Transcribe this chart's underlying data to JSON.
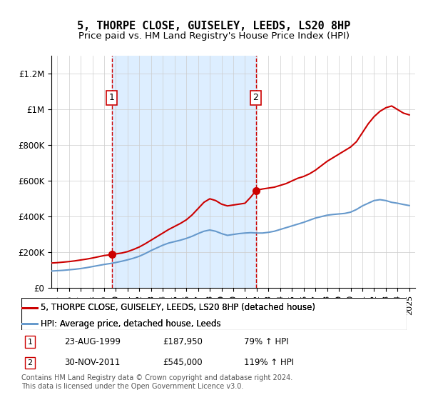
{
  "title": "5, THORPE CLOSE, GUISELEY, LEEDS, LS20 8HP",
  "subtitle": "Price paid vs. HM Land Registry's House Price Index (HPI)",
  "title_fontsize": 11,
  "subtitle_fontsize": 9.5,
  "legend_line1": "5, THORPE CLOSE, GUISELEY, LEEDS, LS20 8HP (detached house)",
  "legend_line2": "HPI: Average price, detached house, Leeds",
  "footer": "Contains HM Land Registry data © Crown copyright and database right 2024.\nThis data is licensed under the Open Government Licence v3.0.",
  "marker1_date_label": "23-AUG-1999",
  "marker1_price_label": "£187,950",
  "marker1_hpi_label": "79% ↑ HPI",
  "marker1_x": 1999.645,
  "marker1_y": 187950,
  "marker2_date_label": "30-NOV-2011",
  "marker2_price_label": "£545,000",
  "marker2_hpi_label": "119% ↑ HPI",
  "marker2_x": 2011.917,
  "marker2_y": 545000,
  "shade_x1": 1999.645,
  "shade_x2": 2011.917,
  "property_color": "#cc0000",
  "hpi_color": "#6699cc",
  "shade_color": "#ddeeff",
  "marker_box_color": "#cc0000",
  "ylim": [
    0,
    1300000
  ],
  "xlim": [
    1994.5,
    2025.5
  ],
  "yticks": [
    0,
    200000,
    400000,
    600000,
    800000,
    1000000,
    1200000
  ],
  "ytick_labels": [
    "£0",
    "£200K",
    "£400K",
    "£600K",
    "£800K",
    "£1M",
    "£1.2M"
  ],
  "xticks": [
    1995,
    1996,
    1997,
    1998,
    1999,
    2000,
    2001,
    2002,
    2003,
    2004,
    2005,
    2006,
    2007,
    2008,
    2009,
    2010,
    2011,
    2012,
    2013,
    2014,
    2015,
    2016,
    2017,
    2018,
    2019,
    2020,
    2021,
    2022,
    2023,
    2024,
    2025
  ],
  "property_x": [
    1994.5,
    1995.0,
    1995.5,
    1996.0,
    1996.5,
    1997.0,
    1997.5,
    1998.0,
    1998.5,
    1999.0,
    1999.5,
    1999.645,
    2000.0,
    2000.5,
    2001.0,
    2001.5,
    2002.0,
    2002.5,
    2003.0,
    2003.5,
    2004.0,
    2004.5,
    2005.0,
    2005.5,
    2006.0,
    2006.5,
    2007.0,
    2007.5,
    2008.0,
    2008.5,
    2009.0,
    2009.5,
    2010.0,
    2010.5,
    2011.0,
    2011.5,
    2011.917,
    2012.0,
    2012.5,
    2013.0,
    2013.5,
    2014.0,
    2014.5,
    2015.0,
    2015.5,
    2016.0,
    2016.5,
    2017.0,
    2017.5,
    2018.0,
    2018.5,
    2019.0,
    2019.5,
    2020.0,
    2020.5,
    2021.0,
    2021.5,
    2022.0,
    2022.5,
    2023.0,
    2023.5,
    2024.0,
    2024.5,
    2025.0
  ],
  "property_y": [
    140000,
    142000,
    145000,
    148000,
    152000,
    157000,
    162000,
    168000,
    175000,
    182000,
    186000,
    187950,
    191000,
    196000,
    204000,
    216000,
    230000,
    248000,
    268000,
    288000,
    308000,
    328000,
    345000,
    362000,
    382000,
    410000,
    445000,
    480000,
    500000,
    490000,
    470000,
    460000,
    465000,
    470000,
    475000,
    510000,
    545000,
    548000,
    555000,
    560000,
    565000,
    575000,
    585000,
    600000,
    615000,
    625000,
    640000,
    660000,
    685000,
    710000,
    730000,
    750000,
    770000,
    790000,
    820000,
    870000,
    920000,
    960000,
    990000,
    1010000,
    1020000,
    1000000,
    980000,
    970000
  ],
  "hpi_x": [
    1994.5,
    1995.0,
    1995.5,
    1996.0,
    1996.5,
    1997.0,
    1997.5,
    1998.0,
    1998.5,
    1999.0,
    1999.5,
    2000.0,
    2000.5,
    2001.0,
    2001.5,
    2002.0,
    2002.5,
    2003.0,
    2003.5,
    2004.0,
    2004.5,
    2005.0,
    2005.5,
    2006.0,
    2006.5,
    2007.0,
    2007.5,
    2008.0,
    2008.5,
    2009.0,
    2009.5,
    2010.0,
    2010.5,
    2011.0,
    2011.5,
    2012.0,
    2012.5,
    2013.0,
    2013.5,
    2014.0,
    2014.5,
    2015.0,
    2015.5,
    2016.0,
    2016.5,
    2017.0,
    2017.5,
    2018.0,
    2018.5,
    2019.0,
    2019.5,
    2020.0,
    2020.5,
    2021.0,
    2021.5,
    2022.0,
    2022.5,
    2023.0,
    2023.5,
    2024.0,
    2024.5,
    2025.0
  ],
  "hpi_y": [
    95000,
    97000,
    99000,
    102000,
    105000,
    109000,
    114000,
    120000,
    126000,
    132000,
    137000,
    143000,
    150000,
    158000,
    167000,
    178000,
    193000,
    210000,
    225000,
    240000,
    252000,
    260000,
    268000,
    278000,
    290000,
    305000,
    318000,
    325000,
    318000,
    305000,
    295000,
    300000,
    305000,
    308000,
    310000,
    308000,
    308000,
    312000,
    318000,
    328000,
    338000,
    348000,
    358000,
    368000,
    380000,
    392000,
    400000,
    408000,
    412000,
    415000,
    418000,
    425000,
    440000,
    460000,
    475000,
    490000,
    495000,
    490000,
    480000,
    475000,
    468000,
    462000
  ]
}
